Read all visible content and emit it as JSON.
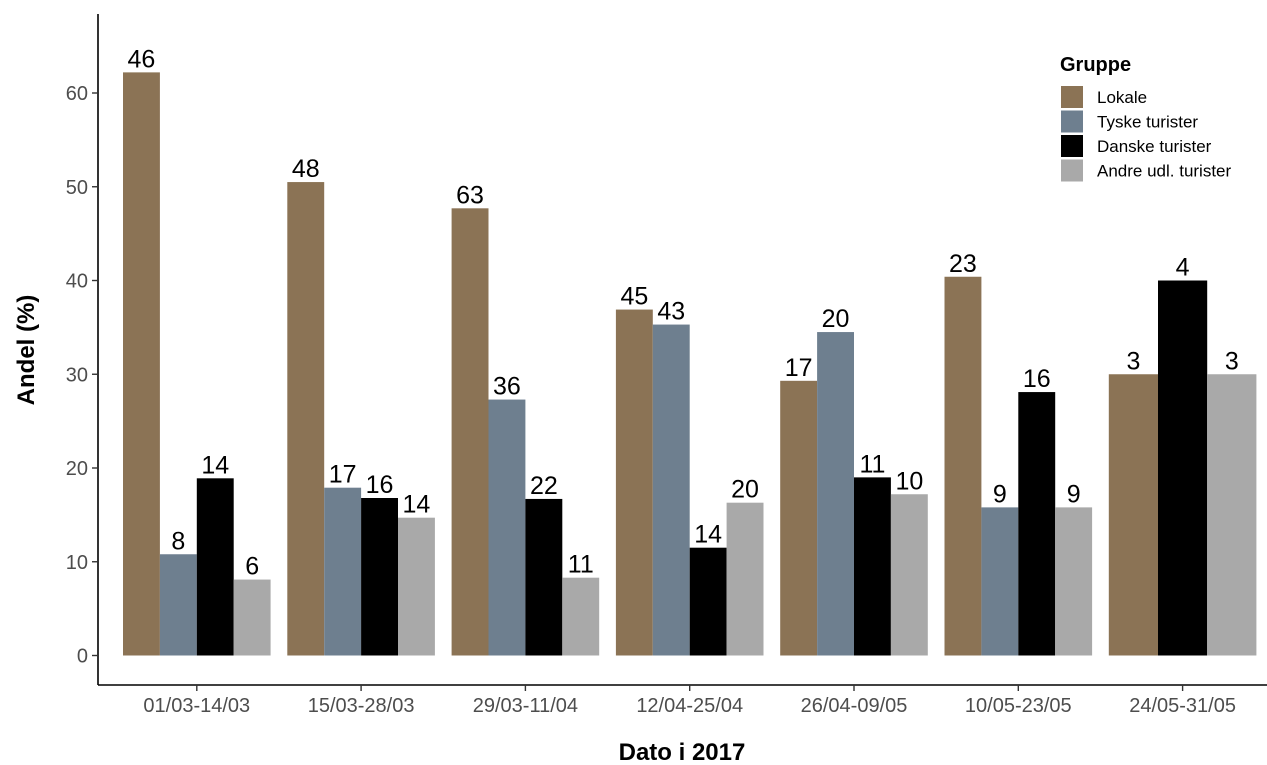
{
  "chart_data": {
    "type": "bar",
    "title": "",
    "xlabel": "Dato i 2017",
    "ylabel": "Andel (%)",
    "ylim": [
      0,
      66
    ],
    "yticks": [
      0,
      10,
      20,
      30,
      40,
      50,
      60
    ],
    "grid": false,
    "legend": {
      "title": "Gruppe",
      "placement": "top-right"
    },
    "categories": [
      "01/03-14/03",
      "15/03-28/03",
      "29/03-11/04",
      "12/04-25/04",
      "26/04-09/05",
      "10/05-23/05",
      "24/05-31/05"
    ],
    "series": [
      {
        "name": "Lokale",
        "color": "#8b7355",
        "values": [
          62.2,
          50.5,
          47.7,
          36.9,
          29.3,
          40.4,
          30.0
        ],
        "labels": [
          "46",
          "48",
          "63",
          "45",
          "17",
          "23",
          "3"
        ]
      },
      {
        "name": "Tyske turister",
        "color": "#6e7f8f",
        "values": [
          10.8,
          17.9,
          27.3,
          35.3,
          34.5,
          15.8,
          null
        ],
        "labels": [
          "8",
          "17",
          "36",
          "43",
          "20",
          "9",
          null
        ]
      },
      {
        "name": "Danske turister",
        "color": "#000000",
        "values": [
          18.9,
          16.8,
          16.7,
          11.5,
          19.0,
          28.1,
          40.0
        ],
        "labels": [
          "14",
          "16",
          "22",
          "14",
          "11",
          "16",
          "4"
        ]
      },
      {
        "name": "Andre udl. turister",
        "color": "#a9a9a9",
        "values": [
          8.1,
          14.7,
          8.3,
          16.3,
          17.2,
          15.8,
          30.0
        ],
        "labels": [
          "6",
          "14",
          "11",
          "20",
          "10",
          "9",
          "3"
        ]
      }
    ]
  }
}
